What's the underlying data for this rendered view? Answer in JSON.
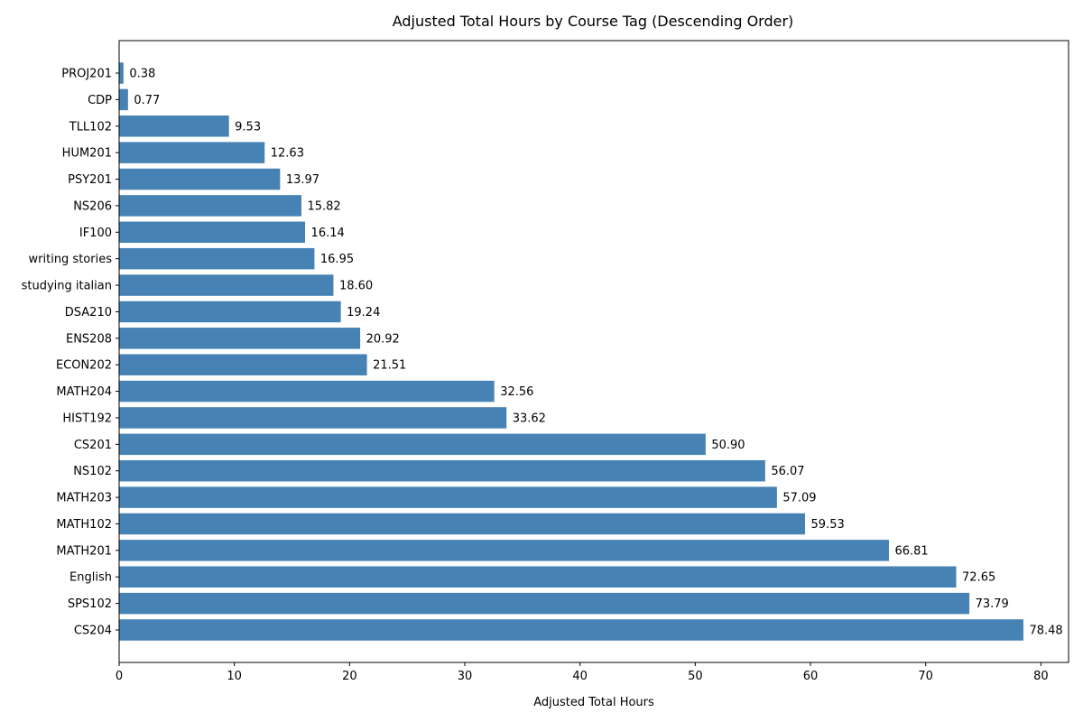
{
  "chart_data": {
    "type": "bar",
    "orientation": "horizontal",
    "title": "Adjusted Total Hours by Course Tag (Descending Order)",
    "xlabel": "Adjusted Total Hours",
    "ylabel": "",
    "xlim": [
      0,
      82.4
    ],
    "xticks": [
      0,
      10,
      20,
      30,
      40,
      50,
      60,
      70,
      80
    ],
    "grid": false,
    "bar_color": "#4682b4",
    "categories": [
      "PROJ201",
      "CDP",
      "TLL102",
      "HUM201",
      "PSY201",
      "NS206",
      "IF100",
      "writing stories",
      "studying italian",
      "DSA210",
      "ENS208",
      "ECON202",
      "MATH204",
      "HIST192",
      "CS201",
      "NS102",
      "MATH203",
      "MATH102",
      "MATH201",
      "English",
      "SPS102",
      "CS204"
    ],
    "values": [
      0.38,
      0.77,
      9.53,
      12.63,
      13.97,
      15.82,
      16.14,
      16.95,
      18.6,
      19.24,
      20.92,
      21.51,
      32.56,
      33.62,
      50.9,
      56.07,
      57.09,
      59.53,
      66.81,
      72.65,
      73.79,
      78.48
    ],
    "value_labels": [
      "0.38",
      "0.77",
      "9.53",
      "12.63",
      "13.97",
      "15.82",
      "16.14",
      "16.95",
      "18.60",
      "19.24",
      "20.92",
      "21.51",
      "32.56",
      "33.62",
      "50.90",
      "56.07",
      "57.09",
      "59.53",
      "66.81",
      "72.65",
      "73.79",
      "78.48"
    ]
  }
}
